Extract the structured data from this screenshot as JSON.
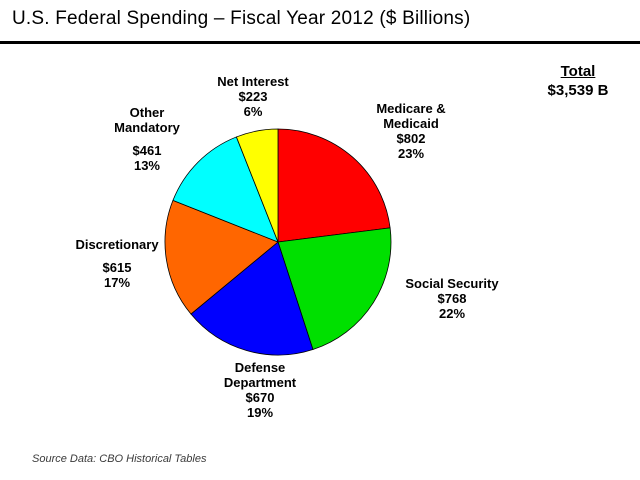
{
  "source_note": "Source Data: CBO Historical Tables",
  "chart_data": {
    "type": "pie",
    "title": "U.S. Federal Spending – Fiscal Year 2012 ($ Billions)",
    "total_label": "Total",
    "total_value": "$3,539 B",
    "units": "$ Billions",
    "start_angle_deg_from_12_oclock": 0,
    "direction": "clockwise",
    "segments": [
      {
        "id": "medicare-medicaid",
        "name": "Medicare & Medicaid",
        "name_lines": [
          "Medicare &",
          "Medicaid"
        ],
        "value_billions": 802,
        "value_label": "$802",
        "percent": 23,
        "percent_label": "23%",
        "color": "#FF0000"
      },
      {
        "id": "social-security",
        "name": "Social Security",
        "name_lines": [
          "Social Security"
        ],
        "value_billions": 768,
        "value_label": "$768",
        "percent": 22,
        "percent_label": "22%",
        "color": "#00E000"
      },
      {
        "id": "defense-department",
        "name": "Defense Department",
        "name_lines": [
          "Defense",
          "Department"
        ],
        "value_billions": 670,
        "value_label": "$670",
        "percent": 19,
        "percent_label": "19%",
        "color": "#0000FF"
      },
      {
        "id": "discretionary",
        "name": "Discretionary",
        "name_lines": [
          "Discretionary"
        ],
        "value_billions": 615,
        "value_label": "$615",
        "percent": 17,
        "percent_label": "17%",
        "color": "#FF6600"
      },
      {
        "id": "other-mandatory",
        "name": "Other Mandatory",
        "name_lines": [
          "Other",
          "Mandatory"
        ],
        "value_billions": 461,
        "value_label": "$461",
        "percent": 13,
        "percent_label": "13%",
        "color": "#00FFFF"
      },
      {
        "id": "net-interest",
        "name": "Net Interest",
        "name_lines": [
          "Net Interest"
        ],
        "value_billions": 223,
        "value_label": "$223",
        "percent": 6,
        "percent_label": "6%",
        "color": "#FFFF00"
      }
    ]
  }
}
